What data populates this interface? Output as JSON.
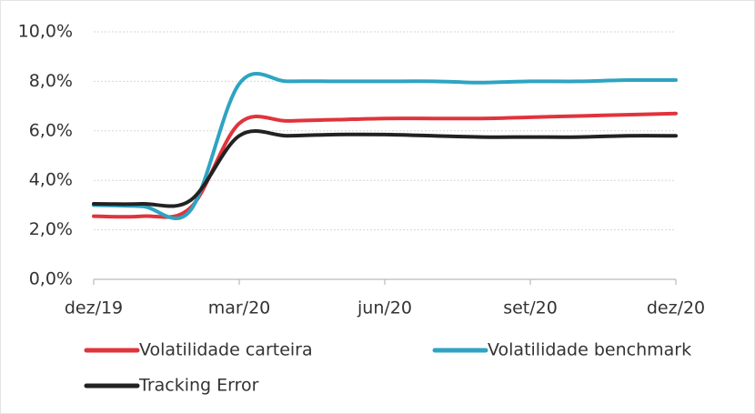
{
  "chart_data": {
    "type": "line",
    "categories": [
      "dez/19",
      null,
      null,
      "mar/20",
      null,
      null,
      "jun/20",
      null,
      null,
      "set/20",
      null,
      null,
      "dez/20"
    ],
    "series": [
      {
        "name": "Volatilidade carteira",
        "color": "#e0343c",
        "values": [
          2.55,
          2.55,
          2.9,
          6.3,
          6.4,
          6.45,
          6.5,
          6.5,
          6.5,
          6.55,
          6.6,
          6.65,
          6.7
        ]
      },
      {
        "name": "Volatilidade benchmark",
        "color": "#2ea4c2",
        "values": [
          3.0,
          2.95,
          2.8,
          7.9,
          8.0,
          8.0,
          8.0,
          8.0,
          7.95,
          8.0,
          8.0,
          8.05,
          8.05
        ]
      },
      {
        "name": "Tracking Error",
        "color": "#222222",
        "values": [
          3.05,
          3.05,
          3.2,
          5.8,
          5.8,
          5.85,
          5.85,
          5.8,
          5.75,
          5.75,
          5.75,
          5.8,
          5.8
        ]
      }
    ],
    "ylim": [
      0,
      10
    ],
    "yticks": [
      {
        "value": 0,
        "label": "0,0%"
      },
      {
        "value": 2,
        "label": "2,0%"
      },
      {
        "value": 4,
        "label": "4,0%"
      },
      {
        "value": 6,
        "label": "6,0%"
      },
      {
        "value": 8,
        "label": "8,0%"
      },
      {
        "value": 10,
        "label": "10,0%"
      }
    ],
    "grid": true
  }
}
